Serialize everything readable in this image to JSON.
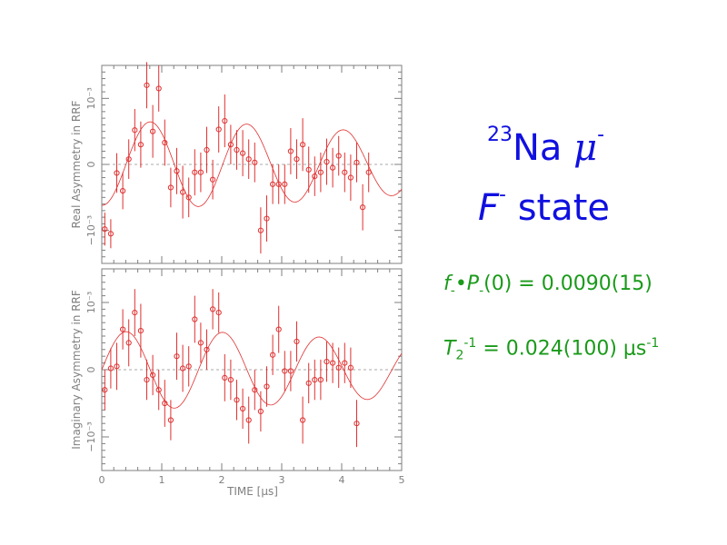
{
  "title": {
    "isotope": "23",
    "element": "Na",
    "particle": "μ",
    "charge": "-",
    "state_symbol": "F",
    "state_charge": "-",
    "state_word": "state"
  },
  "fit": {
    "line1": {
      "f_sym": "f",
      "sub1": "-",
      "bullet": "•",
      "p_sym": "P",
      "sub2": "-",
      "rest": "(0) = 0.0090(15)"
    },
    "line2": {
      "t_sym": "T",
      "sub": "2",
      "sup1": "-1",
      "rest": " = 0.024(100) μs",
      "sup2": "-1"
    }
  },
  "chart_data": [
    {
      "type": "scatter",
      "panel": "top",
      "ylabel": "Real Asymmetry in RRF",
      "yticks": [
        "10⁻³",
        "0",
        "−10⁻³"
      ],
      "xlim": [
        0,
        5
      ],
      "ylim": [
        -0.0015,
        0.0015
      ],
      "x": [
        0.05,
        0.15,
        0.25,
        0.35,
        0.45,
        0.55,
        0.65,
        0.75,
        0.85,
        0.95,
        1.05,
        1.15,
        1.25,
        1.35,
        1.45,
        1.55,
        1.65,
        1.75,
        1.85,
        1.95,
        2.05,
        2.15,
        2.25,
        2.35,
        2.45,
        2.55,
        2.65,
        2.75,
        2.85,
        2.95,
        3.05,
        3.15,
        3.25,
        3.35,
        3.45,
        3.55,
        3.65,
        3.75,
        3.85,
        3.95,
        4.05,
        4.15,
        4.25,
        4.35,
        4.45,
        4.55,
        4.65,
        4.75,
        4.85,
        4.95
      ],
      "y": [
        -0.00098,
        -0.00105,
        -0.00013,
        -0.0004,
        8e-05,
        0.00052,
        0.0003,
        0.0012,
        0.0005,
        0.00115,
        0.00033,
        -0.00035,
        -0.0001,
        -0.00042,
        -0.0005,
        -0.00012,
        -0.00012,
        0.00022,
        -0.00023,
        0.00053,
        0.00066,
        0.0003,
        0.00022,
        0.00017,
        8e-05,
        3e-05,
        -0.001,
        -0.00082,
        -0.0003,
        -0.0003,
        -0.0003,
        0.0002,
        8e-05,
        0.0003,
        -8e-05,
        -0.00018,
        -0.00012,
        4e-05,
        -5e-05,
        0.00013,
        -0.00012,
        -0.0002,
        3e-05,
        -0.00065,
        -0.00012,
        0,
        0,
        0,
        0,
        0
      ],
      "yerr": [
        0.00025,
        0.00022,
        0.0003,
        0.00028,
        0.0003,
        0.00032,
        0.00035,
        0.00035,
        0.0004,
        0.00035,
        0.00035,
        0.0003,
        0.00035,
        0.0004,
        0.0003,
        0.00035,
        0.0003,
        0.00035,
        0.0003,
        0.00035,
        0.0004,
        0.0003,
        0.0003,
        0.00035,
        0.0003,
        0.0003,
        0.00035,
        0.00035,
        0.0003,
        0.0003,
        0.0003,
        0.00035,
        0.0003,
        0.0004,
        0.00035,
        0.0003,
        0.0003,
        0.00035,
        0.0003,
        0.0003,
        0.0003,
        0.00035,
        0.0003,
        0.00035,
        0.0003,
        0,
        0,
        0,
        0,
        0
      ]
    },
    {
      "type": "scatter",
      "panel": "bottom",
      "xlabel": "TIME [μs]",
      "ylabel": "Imaginary Asymmetry in RRF",
      "yticks": [
        "10⁻³",
        "0",
        "−10⁻³"
      ],
      "xticks": [
        "0",
        "1",
        "2",
        "3",
        "4",
        "5"
      ],
      "xlim": [
        0,
        5
      ],
      "ylim": [
        -0.0015,
        0.0015
      ],
      "x": [
        0.05,
        0.15,
        0.25,
        0.35,
        0.45,
        0.55,
        0.65,
        0.75,
        0.85,
        0.95,
        1.05,
        1.15,
        1.25,
        1.35,
        1.45,
        1.55,
        1.65,
        1.75,
        1.85,
        1.95,
        2.05,
        2.15,
        2.25,
        2.35,
        2.45,
        2.55,
        2.65,
        2.75,
        2.85,
        2.95,
        3.05,
        3.15,
        3.25,
        3.35,
        3.45,
        3.55,
        3.65,
        3.75,
        3.85,
        3.95,
        4.05,
        4.15,
        4.25,
        4.35,
        4.45,
        4.55,
        4.65,
        4.75,
        4.85,
        4.95
      ],
      "y": [
        -0.0003,
        2e-05,
        5e-05,
        0.0006,
        0.0004,
        0.00085,
        0.00058,
        -0.00015,
        -8e-05,
        -0.0003,
        -0.0005,
        -0.00075,
        0.0002,
        2e-05,
        5e-05,
        0.00075,
        0.0004,
        0.0003,
        0.0009,
        0.00085,
        -0.00012,
        -0.00015,
        -0.00045,
        -0.00058,
        -0.00075,
        -0.0003,
        -0.00062,
        -0.00025,
        0.00022,
        0.0006,
        -2e-05,
        -2e-05,
        0.00042,
        -0.00075,
        -0.0002,
        -0.00015,
        -0.00015,
        0.00012,
        0.0001,
        3e-05,
        0.0001,
        3e-05,
        -0.0008,
        0,
        0,
        0,
        0,
        0,
        0,
        0
      ],
      "yerr": [
        0.0003,
        0.0003,
        0.00035,
        0.0003,
        0.00035,
        0.00035,
        0.0004,
        0.0003,
        0.0003,
        0.0003,
        0.00035,
        0.0003,
        0.00035,
        0.00035,
        0.0003,
        0.00035,
        0.0003,
        0.0003,
        0.0003,
        0.0003,
        0.00035,
        0.0003,
        0.0003,
        0.0003,
        0.00035,
        0.0003,
        0.0003,
        0.0003,
        0.0003,
        0.00035,
        0.0003,
        0.0003,
        0.0003,
        0.00035,
        0.0003,
        0.0003,
        0.0003,
        0.0003,
        0.0003,
        0.0003,
        0.0003,
        0.0003,
        0.00035,
        0,
        0,
        0,
        0,
        0,
        0,
        0
      ]
    }
  ],
  "colors": {
    "data": "#e03030",
    "fit_curve": "#e03030",
    "axes": "#7f7f7f",
    "title": "#1010e0",
    "fit_text": "#1a9a1a"
  }
}
